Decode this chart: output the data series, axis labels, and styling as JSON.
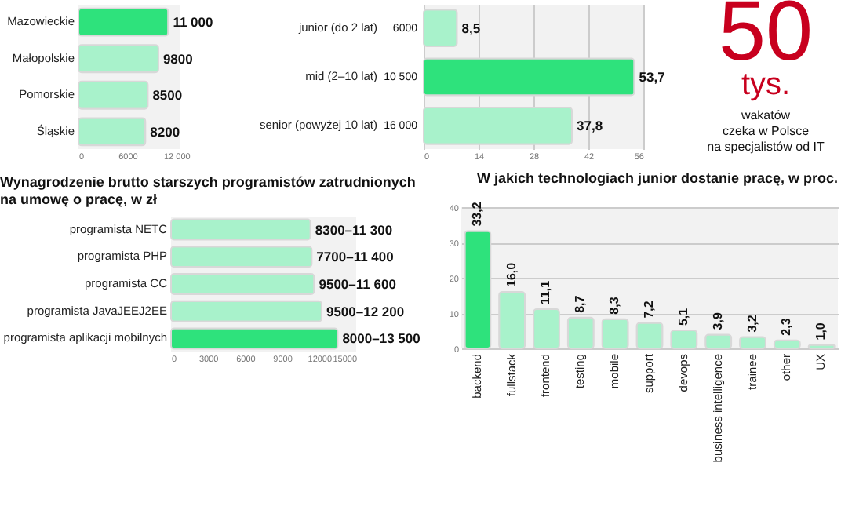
{
  "chart_data": [
    {
      "type": "bar",
      "orientation": "horizontal",
      "categories": [
        "Mazowieckie",
        "Małopolskie",
        "Pomorskie",
        "Śląskie"
      ],
      "values": [
        11000,
        9800,
        8500,
        8200
      ],
      "colors": [
        "#2ee27c",
        "#a8f2cb",
        "#a8f2cb",
        "#a8f2cb"
      ],
      "value_labels": [
        "11 000",
        "9800",
        "8500",
        "8200"
      ],
      "xlim": [
        0,
        12500
      ],
      "xticks": [
        0,
        6000,
        {
          "value": 12000,
          "label": "12 000"
        }
      ]
    },
    {
      "type": "bar",
      "orientation": "horizontal",
      "categories": [
        "junior (do 2 lat)",
        "mid (2–10 lat)",
        "senior (powyżej 10 lat)"
      ],
      "values": [
        8.5,
        53.7,
        37.8
      ],
      "colors": [
        "#a8f2cb",
        "#2ee27c",
        "#a8f2cb"
      ],
      "value_labels": [
        "8,5",
        "53,7",
        "37,8"
      ],
      "annotations": [
        "6000",
        "10 500",
        "16 000"
      ],
      "xlim": [
        0,
        56
      ],
      "xticks": [
        0,
        14,
        28,
        42,
        56
      ],
      "grid": "x"
    },
    {
      "type": "other",
      "title": "50",
      "subtitle": "tys.",
      "annotations": [
        "wakatów",
        "czeka w Polsce",
        "na specjalistów od IT"
      ]
    },
    {
      "type": "bar",
      "orientation": "horizontal",
      "title": "Wynagrodzenie brutto starszych programistów zatrudnionych na umowę o pracę, w zł",
      "categories": [
        "programista NETC",
        "programista PHP",
        "programista CC",
        "programista JavaJEEJ2EE",
        "programista aplikacji mobilnych"
      ],
      "values": [
        11300,
        11400,
        11600,
        12200,
        13500
      ],
      "colors": [
        "#a8f2cb",
        "#a8f2cb",
        "#a8f2cb",
        "#a8f2cb",
        "#2ee27c"
      ],
      "value_labels": [
        "8300–11 300",
        "7700–11 400",
        "9500–11 600",
        "9500–12 200",
        "8000–13 500"
      ],
      "xlim": [
        0,
        15000
      ],
      "xticks": [
        0,
        3000,
        6000,
        9000,
        12000,
        15000
      ]
    },
    {
      "type": "bar",
      "title": "W jakich technologiach junior dostanie pracę, w proc.",
      "categories": [
        "backend",
        "fullstack",
        "frontend",
        "testing",
        "mobile",
        "support",
        "devops",
        "business intelligence",
        "trainee",
        "other",
        "UX"
      ],
      "values": [
        33.2,
        16.0,
        11.1,
        8.7,
        8.3,
        7.2,
        5.1,
        3.9,
        3.2,
        2.3,
        1.0
      ],
      "colors": [
        "#2ee27c",
        "#a8f2cb",
        "#a8f2cb",
        "#a8f2cb",
        "#a8f2cb",
        "#a8f2cb",
        "#a8f2cb",
        "#a8f2cb",
        "#a8f2cb",
        "#a8f2cb",
        "#a8f2cb"
      ],
      "value_labels": [
        "33,2",
        "16,0",
        "11,1",
        "8,7",
        "8,3",
        "7,2",
        "5,1",
        "3,9",
        "3,2",
        "2,3",
        "1,0"
      ],
      "ylim": [
        0,
        40
      ],
      "yticks": [
        0,
        10,
        20,
        30,
        40
      ],
      "grid": "y"
    }
  ]
}
